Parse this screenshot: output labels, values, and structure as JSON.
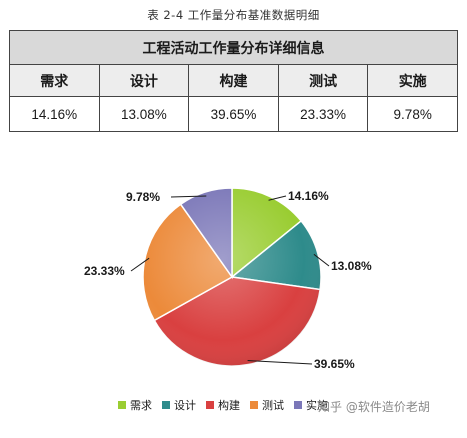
{
  "caption": "表 2-4  工作量分布基准数据明细",
  "table": {
    "title": "工程活动工作量分布详细信息",
    "headers": [
      "需求",
      "设计",
      "构建",
      "测试",
      "实施"
    ],
    "values": [
      "14.16%",
      "13.08%",
      "39.65%",
      "23.33%",
      "9.78%"
    ]
  },
  "chart_data": {
    "type": "pie",
    "slices": [
      {
        "name": "需求",
        "value": 14.16,
        "label": "14.16%",
        "color": "#9acd32"
      },
      {
        "name": "设计",
        "value": 13.08,
        "label": "13.08%",
        "color": "#2e8b8b"
      },
      {
        "name": "构建",
        "value": 39.65,
        "label": "39.65%",
        "color": "#d94040"
      },
      {
        "name": "测试",
        "value": 23.33,
        "label": "23.33%",
        "color": "#ec8a3a"
      },
      {
        "name": "实施",
        "value": 9.78,
        "label": "9.78%",
        "color": "#7b77b8"
      }
    ],
    "legend": "bottom"
  },
  "watermark": "知乎 @软件造价老胡"
}
